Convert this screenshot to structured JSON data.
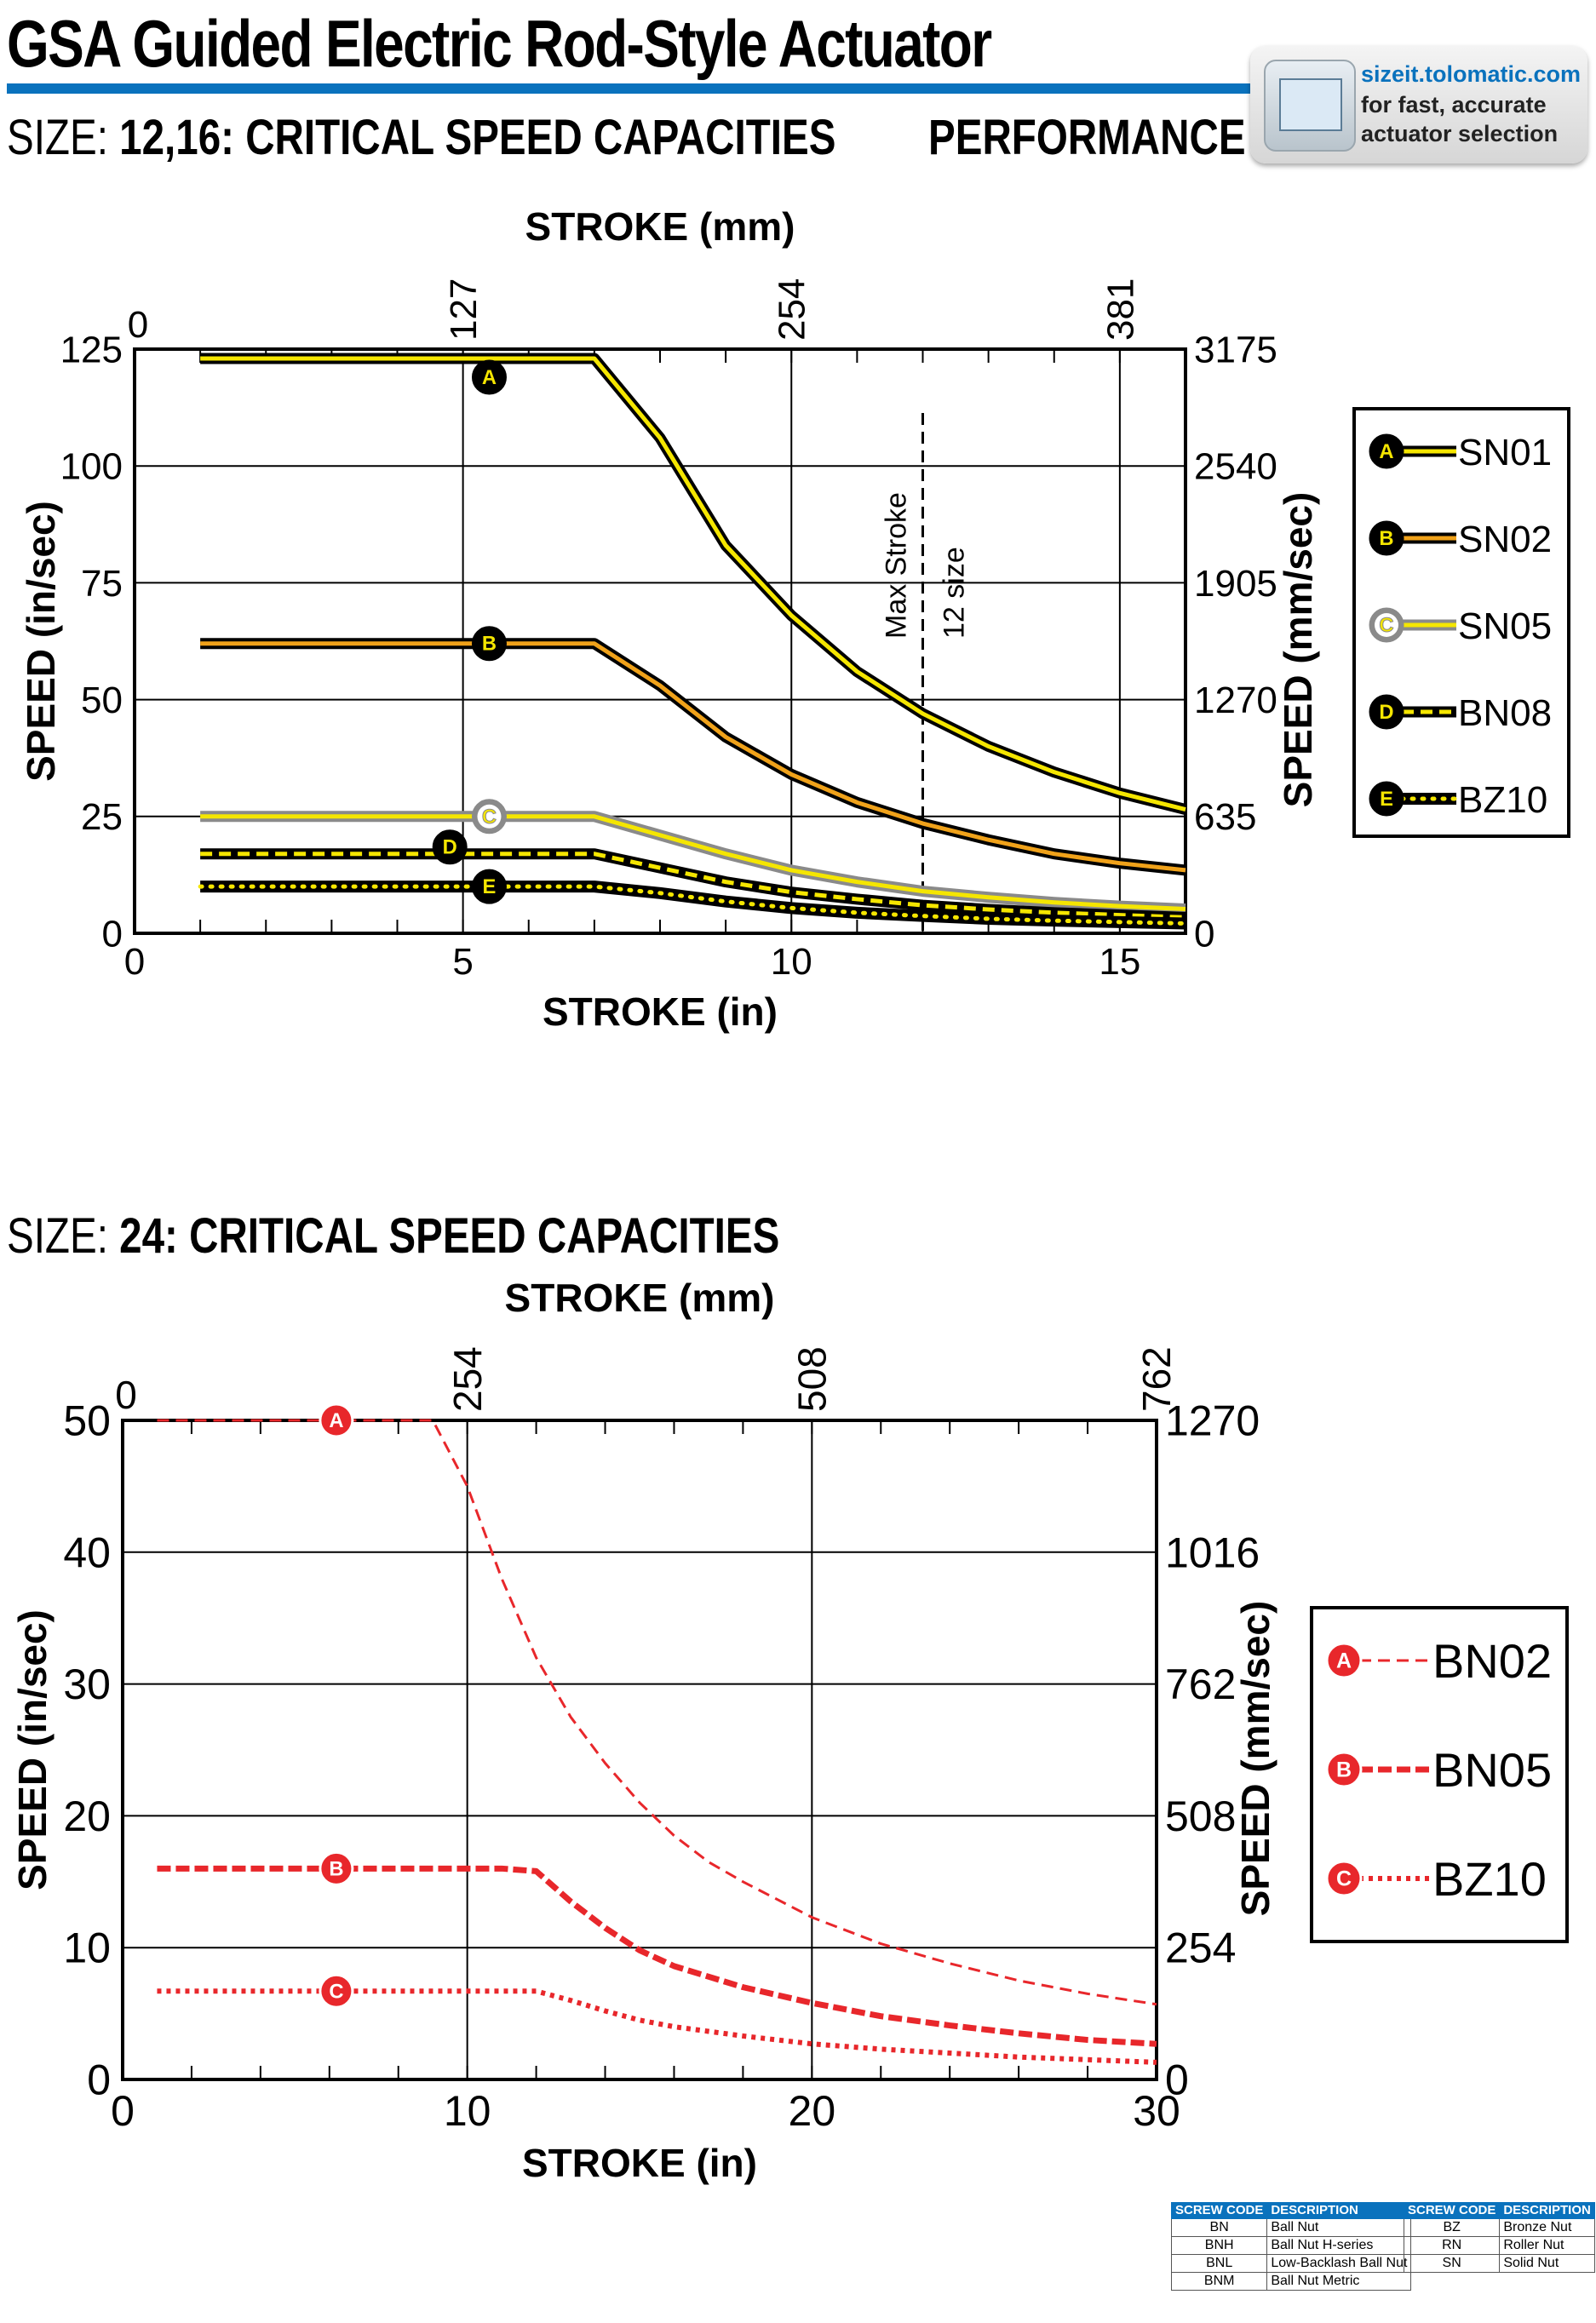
{
  "header": {
    "title": "GSA Guided Electric Rod-Style Actuator",
    "size_label": "SIZE:",
    "section1": "12,16: CRITICAL SPEED CAPACITIES",
    "performance": "PERFORMANCE",
    "section2": "24: CRITICAL SPEED CAPACITIES",
    "brand_color": "#0a72bd"
  },
  "badge": {
    "url": "sizeit.tolomatic.com",
    "line2": "for fast, accurate",
    "line3": "actuator selection",
    "icon": "sizing-software-icon"
  },
  "chart_data": [
    {
      "type": "line",
      "title": "",
      "xlabel": "STROKE (in)",
      "x2label": "STROKE (mm)",
      "ylabel": "SPEED (in/sec)",
      "y2label": "SPEED (mm/sec)",
      "xlim": [
        0,
        16
      ],
      "ylim": [
        0,
        125
      ],
      "xticks": [
        "0",
        "5",
        "10",
        "15"
      ],
      "yticks": [
        "0",
        "25",
        "50",
        "75",
        "100",
        "125"
      ],
      "x2ticks": [
        "0",
        "127",
        "254",
        "381"
      ],
      "y2ticks": [
        "0",
        "635",
        "1270",
        "1905",
        "2540",
        "3175"
      ],
      "grid": true,
      "legend_position": "right",
      "annotation": {
        "text1": "Max Stroke",
        "text2": "12 size",
        "x": 12
      },
      "series": [
        {
          "name": "SN01",
          "marker": "A",
          "style": "yellow-black",
          "x": [
            1,
            6,
            7,
            8,
            9,
            10,
            11,
            12,
            13,
            14,
            15,
            16
          ],
          "y": [
            123,
            123,
            123,
            106,
            83,
            68,
            56,
            47,
            40,
            34.5,
            30,
            26.5
          ]
        },
        {
          "name": "SN02",
          "marker": "B",
          "style": "orange-black",
          "x": [
            1,
            6,
            7,
            8,
            9,
            10,
            11,
            12,
            13,
            14,
            15,
            16
          ],
          "y": [
            62,
            62,
            62,
            53,
            42,
            34,
            28,
            23.5,
            20,
            17,
            15,
            13.5
          ]
        },
        {
          "name": "SN05",
          "marker": "C",
          "style": "yellow-gray",
          "x": [
            1,
            6,
            7,
            8,
            9,
            10,
            11,
            12,
            13,
            14,
            15,
            16
          ],
          "y": [
            25,
            25,
            25,
            21,
            17,
            13.5,
            11,
            9,
            7.7,
            6.6,
            5.8,
            5.2
          ]
        },
        {
          "name": "BN08",
          "marker": "D",
          "style": "yellow-black-dashed",
          "x": [
            1,
            6,
            7,
            8,
            9,
            10,
            11,
            12,
            13,
            14,
            15,
            16
          ],
          "y": [
            17,
            17,
            17,
            14,
            11,
            8.8,
            7.3,
            6,
            5.1,
            4.4,
            3.9,
            3.4
          ]
        },
        {
          "name": "BZ10",
          "marker": "E",
          "style": "black-yellow-dotted",
          "x": [
            1,
            6,
            7,
            8,
            9,
            10,
            11,
            12,
            13,
            14,
            15,
            16
          ],
          "y": [
            10,
            10,
            10,
            8.6,
            6.8,
            5.4,
            4.4,
            3.7,
            3.1,
            2.7,
            2.4,
            2.1
          ]
        }
      ]
    },
    {
      "type": "line",
      "title": "",
      "xlabel": "STROKE (in)",
      "x2label": "STROKE (mm)",
      "ylabel": "SPEED (in/sec)",
      "y2label": "SPEED (mm/sec)",
      "xlim": [
        0,
        30
      ],
      "ylim": [
        0,
        50
      ],
      "xticks": [
        "0",
        "10",
        "20",
        "30"
      ],
      "yticks": [
        "0",
        "10",
        "20",
        "30",
        "40",
        "50"
      ],
      "x2ticks": [
        "0",
        "254",
        "508",
        "762"
      ],
      "y2ticks": [
        "0",
        "254",
        "508",
        "762",
        "1016",
        "1270"
      ],
      "grid": true,
      "legend_position": "right",
      "series": [
        {
          "name": "BN02",
          "marker": "A",
          "style": "red-thin-dashed",
          "x": [
            1,
            9,
            10,
            11,
            12,
            13,
            14,
            15,
            16,
            17,
            18,
            20,
            22,
            24,
            26,
            28,
            30
          ],
          "y": [
            50,
            50,
            45,
            38,
            32,
            27.5,
            24,
            21,
            18.5,
            16.5,
            15,
            12.3,
            10.3,
            8.8,
            7.5,
            6.5,
            5.7
          ]
        },
        {
          "name": "BN05",
          "marker": "B",
          "style": "red-thick-dashed",
          "x": [
            1,
            11,
            12,
            13,
            14,
            15,
            16,
            18,
            20,
            22,
            24,
            26,
            28,
            30
          ],
          "y": [
            16,
            16,
            15.8,
            13.5,
            11.5,
            9.8,
            8.6,
            7,
            5.8,
            4.8,
            4.1,
            3.5,
            3,
            2.7
          ]
        },
        {
          "name": "BZ10",
          "marker": "C",
          "style": "red-dotted",
          "x": [
            1,
            12,
            13,
            14,
            15,
            16,
            18,
            20,
            22,
            24,
            26,
            28,
            30
          ],
          "y": [
            6.7,
            6.7,
            6,
            5.2,
            4.5,
            4,
            3.3,
            2.7,
            2.3,
            2,
            1.7,
            1.5,
            1.3
          ]
        }
      ]
    }
  ],
  "screw_codes_left": {
    "headers": [
      "SCREW CODE",
      "DESCRIPTION"
    ],
    "rows": [
      [
        "BN",
        "Ball Nut"
      ],
      [
        "BNH",
        "Ball Nut H-series"
      ],
      [
        "BNL",
        "Low-Backlash Ball Nut"
      ],
      [
        "BNM",
        "Ball Nut Metric"
      ]
    ]
  },
  "screw_codes_right": {
    "headers": [
      "SCREW CODE",
      "DESCRIPTION"
    ],
    "rows": [
      [
        "BZ",
        "Bronze Nut"
      ],
      [
        "RN",
        "Roller Nut"
      ],
      [
        "SN",
        "Solid Nut"
      ]
    ]
  },
  "colors": {
    "yellow": "#f5e600",
    "orange": "#f0a21a",
    "gray": "#8a8a8a",
    "red": "#e8272b",
    "black": "#000000"
  }
}
